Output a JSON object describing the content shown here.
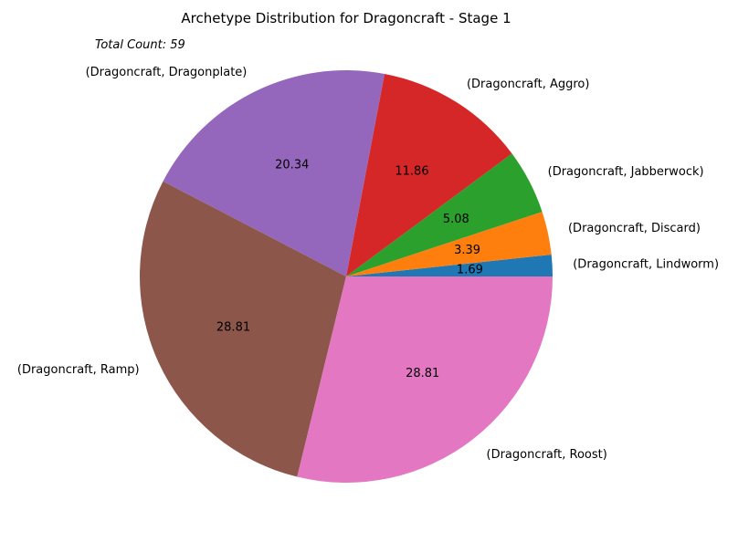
{
  "chart_data": {
    "type": "pie",
    "title": "Archetype Distribution for Dragoncraft - Stage 1",
    "annotation": "Total Count: 59",
    "start_angle_deg": 0,
    "direction": "counterclockwise",
    "slices": [
      {
        "label": "(Dragoncraft, Lindworm)",
        "value": 1.69,
        "color": "#1f77b4"
      },
      {
        "label": "(Dragoncraft, Discard)",
        "value": 3.39,
        "color": "#ff7f0e"
      },
      {
        "label": "(Dragoncraft, Jabberwock)",
        "value": 5.08,
        "color": "#2ca02c"
      },
      {
        "label": "(Dragoncraft, Aggro)",
        "value": 11.86,
        "color": "#d62728"
      },
      {
        "label": "(Dragoncraft, Dragonplate)",
        "value": 20.34,
        "color": "#9467bd"
      },
      {
        "label": "(Dragoncraft, Ramp)",
        "value": 28.81,
        "color": "#8c564b"
      },
      {
        "label": "(Dragoncraft, Roost)",
        "value": 28.81,
        "color": "#e377c2"
      }
    ]
  }
}
